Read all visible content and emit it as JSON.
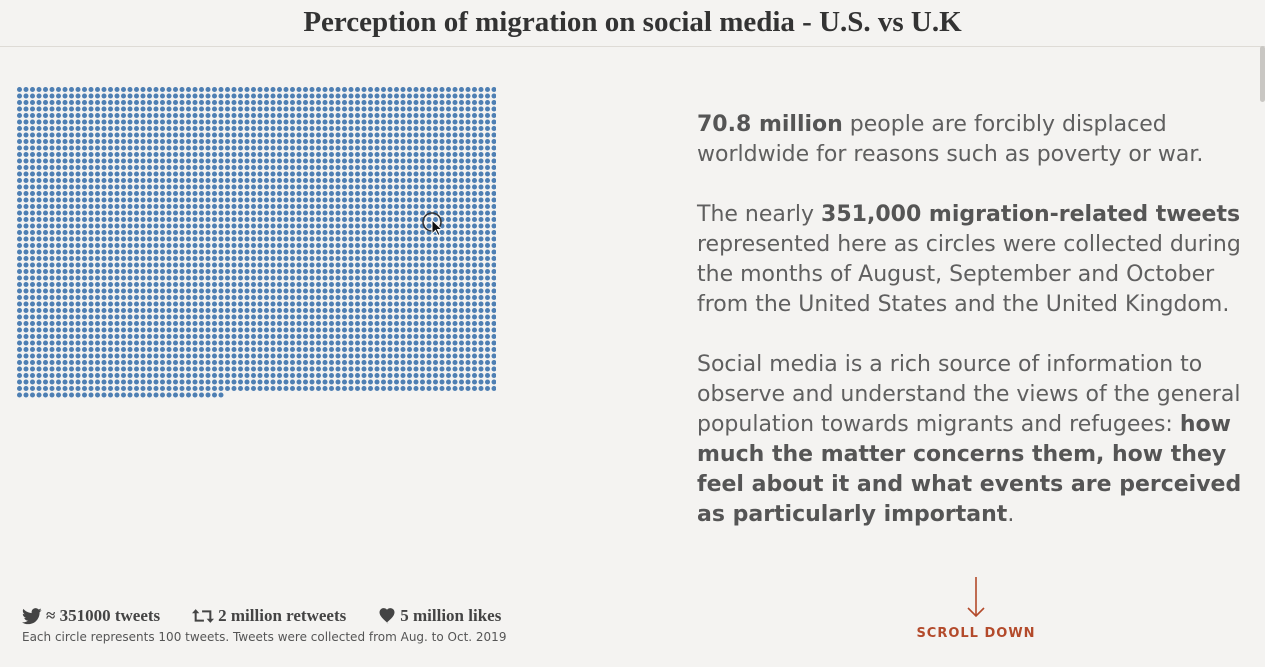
{
  "header": {
    "title": "Perception of migration on social media - U.S. vs U.K"
  },
  "visualization": {
    "dot_color": "#4e7fb3",
    "total_circles": 3510,
    "tweets_per_circle": 100
  },
  "text_panel": {
    "p1_bold": "70.8 million",
    "p1_text": " people are forcibly displaced worldwide for reasons such as poverty or war.",
    "p2_pre": "The nearly ",
    "p2_bold": "351,000 migration-related tweets",
    "p2_text": " represented here as circles were collected during the months of August, September and October from the United States and the United Kingdom.",
    "p3_text": "Social media is a rich source of information to observe and understand the views of the general population towards migrants and refugees: ",
    "p3_bold": "how much the matter concerns them, how they feel about it and what events are perceived as particularly important",
    "p3_end": "."
  },
  "stats": {
    "tweets_icon": "twitter-bird-icon",
    "tweets": "≈ 351000 tweets",
    "retweets_icon": "retweet-icon",
    "retweets": "2 million retweets",
    "likes_icon": "heart-icon",
    "likes": "5 million likes"
  },
  "caption": "Each circle represents 100 tweets. Tweets were collected from Aug. to Oct. 2019",
  "scroll": {
    "label": "SCROLL DOWN",
    "icon": "arrow-down-icon",
    "color": "#b34a2b"
  }
}
